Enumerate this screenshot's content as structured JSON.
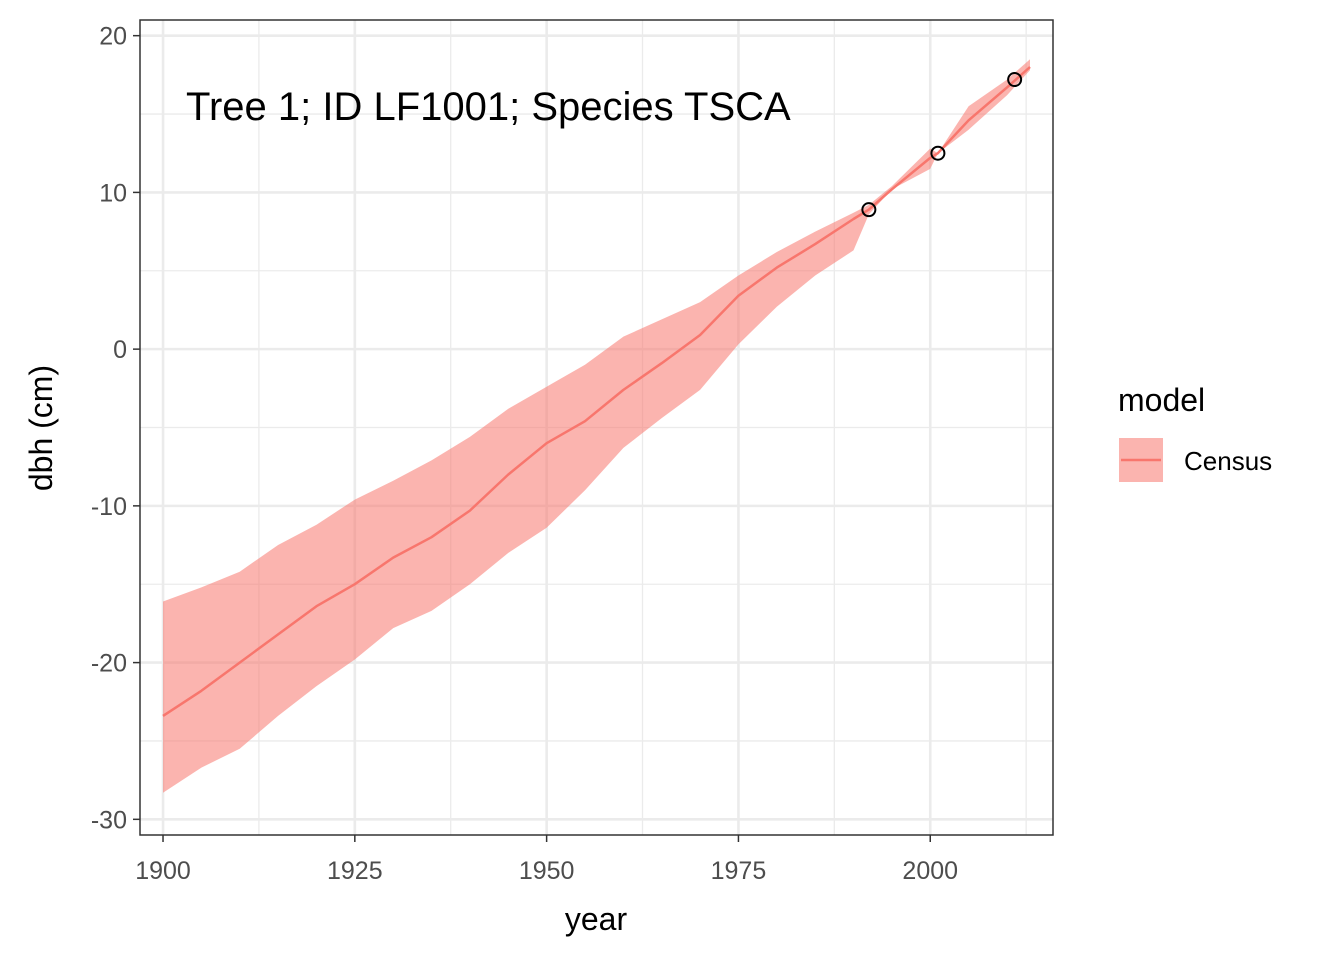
{
  "chart_data": {
    "type": "line",
    "title": "",
    "annotation": "Tree 1; ID LF1001; Species TSCA",
    "xlabel": "year",
    "ylabel": "dbh (cm)",
    "xlim": [
      1897,
      2016
    ],
    "ylim": [
      -31,
      21
    ],
    "x_ticks": [
      1900,
      1925,
      1950,
      1975,
      2000
    ],
    "y_ticks": [
      -30,
      -20,
      -10,
      0,
      10,
      20
    ],
    "grid": true,
    "legend_position": "right",
    "legend": {
      "title": "model",
      "entries": [
        "Census"
      ]
    },
    "colors": {
      "line": "#f8766d",
      "ribbon": "#f8766d",
      "grid": "#ebebeb",
      "panel_border": "#333333"
    },
    "series": [
      {
        "name": "Census",
        "x": [
          1900,
          1905,
          1910,
          1915,
          1920,
          1925,
          1930,
          1935,
          1940,
          1945,
          1950,
          1955,
          1960,
          1965,
          1970,
          1975,
          1980,
          1985,
          1990,
          1992,
          1995,
          2000,
          2001,
          2005,
          2010,
          2013
        ],
        "y": [
          -23.4,
          -21.8,
          -20.0,
          -18.2,
          -16.4,
          -15.0,
          -13.3,
          -12.0,
          -10.3,
          -8.0,
          -6.0,
          -4.6,
          -2.6,
          -0.9,
          0.9,
          3.4,
          5.2,
          6.7,
          8.3,
          8.9,
          10.2,
          12.2,
          12.5,
          14.6,
          16.7,
          18.0
        ],
        "lower": [
          -28.3,
          -26.7,
          -25.5,
          -23.4,
          -21.5,
          -19.8,
          -17.8,
          -16.7,
          -15.0,
          -13.0,
          -11.4,
          -9.0,
          -6.3,
          -4.4,
          -2.6,
          0.3,
          2.7,
          4.7,
          6.3,
          8.6,
          10.2,
          11.5,
          12.5,
          14.0,
          16.2,
          17.8
        ],
        "upper": [
          -16.1,
          -15.2,
          -14.2,
          -12.5,
          -11.2,
          -9.6,
          -8.4,
          -7.1,
          -5.6,
          -3.8,
          -2.4,
          -1.0,
          0.8,
          1.9,
          3.0,
          4.7,
          6.2,
          7.5,
          8.7,
          9.2,
          10.4,
          12.8,
          12.5,
          15.5,
          17.2,
          18.5
        ]
      }
    ],
    "points": {
      "x": [
        1992,
        2001,
        2011
      ],
      "y": [
        8.9,
        12.5,
        17.2
      ]
    }
  }
}
